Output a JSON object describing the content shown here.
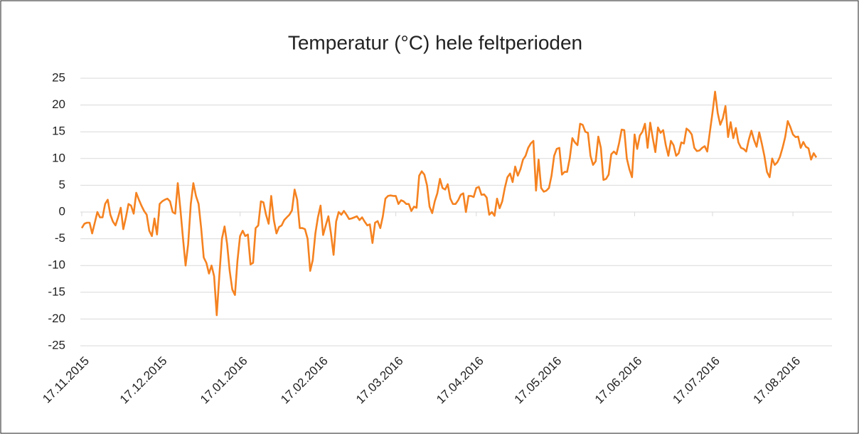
{
  "chart_data": {
    "type": "line",
    "title": "Temperatur (°C) hele feltperioden",
    "categories": [
      "17.11.2015",
      null,
      null,
      null,
      null,
      null,
      null,
      null,
      null,
      null,
      null,
      null,
      null,
      null,
      null,
      null,
      null,
      null,
      null,
      null,
      null,
      null,
      null,
      null,
      null,
      null,
      null,
      null,
      null,
      null,
      "17.12.2015",
      null,
      null,
      null,
      null,
      null,
      null,
      null,
      null,
      null,
      null,
      null,
      null,
      null,
      null,
      null,
      null,
      null,
      null,
      null,
      null,
      null,
      null,
      null,
      null,
      null,
      null,
      null,
      null,
      null,
      null,
      "17.01.2016",
      null,
      null,
      null,
      null,
      null,
      null,
      null,
      null,
      null,
      null,
      null,
      null,
      null,
      null,
      null,
      null,
      null,
      null,
      null,
      null,
      null,
      null,
      null,
      null,
      null,
      null,
      null,
      null,
      null,
      null,
      "17.02.2016",
      null,
      null,
      null,
      null,
      null,
      null,
      null,
      null,
      null,
      null,
      null,
      null,
      null,
      null,
      null,
      null,
      null,
      null,
      null,
      null,
      null,
      null,
      null,
      null,
      null,
      null,
      null,
      null,
      "17.03.2016",
      null,
      null,
      null,
      null,
      null,
      null,
      null,
      null,
      null,
      null,
      null,
      null,
      null,
      null,
      null,
      null,
      null,
      null,
      null,
      null,
      null,
      null,
      null,
      null,
      null,
      null,
      null,
      null,
      null,
      null,
      "17.04.2016",
      null,
      null,
      null,
      null,
      null,
      null,
      null,
      null,
      null,
      null,
      null,
      null,
      null,
      null,
      null,
      null,
      null,
      null,
      null,
      null,
      null,
      null,
      null,
      null,
      null,
      null,
      null,
      null,
      null,
      "17.05.2016",
      null,
      null,
      null,
      null,
      null,
      null,
      null,
      null,
      null,
      null,
      null,
      null,
      null,
      null,
      null,
      null,
      null,
      null,
      null,
      null,
      null,
      null,
      null,
      null,
      null,
      null,
      null,
      null,
      null,
      null,
      "17.06.2016",
      null,
      null,
      null,
      null,
      null,
      null,
      null,
      null,
      null,
      null,
      null,
      null,
      null,
      null,
      null,
      null,
      null,
      null,
      null,
      null,
      null,
      null,
      null,
      null,
      null,
      null,
      null,
      null,
      null,
      "17.07.2016",
      null,
      null,
      null,
      null,
      null,
      null,
      null,
      null,
      null,
      null,
      null,
      null,
      null,
      null,
      null,
      null,
      null,
      null,
      null,
      null,
      null,
      null,
      null,
      null,
      null,
      null,
      null,
      null,
      null,
      null,
      "17.08.2016",
      null,
      null,
      null,
      null,
      null,
      null,
      null,
      null,
      null
    ],
    "series": [
      {
        "name": "Temperatur",
        "color": "#f58220",
        "values": [
          -3,
          -2.2,
          -2,
          -2,
          -4,
          -2,
          0,
          -1,
          -1,
          1.5,
          2.3,
          -0.5,
          -1.8,
          -2.5,
          -1,
          0.8,
          -3.2,
          -1,
          1.5,
          1.2,
          -0.3,
          3.6,
          2.3,
          1.2,
          0.2,
          -0.5,
          -3.5,
          -4.5,
          -1.2,
          -4.2,
          1.5,
          2,
          2.3,
          2.5,
          2,
          0,
          -0.3,
          5.4,
          0.5,
          -5,
          -10,
          -6,
          1.5,
          5.4,
          3,
          1.5,
          -3,
          -8.5,
          -9.5,
          -11.5,
          -10,
          -12,
          -19.3,
          -12,
          -5,
          -2.7,
          -6,
          -11,
          -14.5,
          -15.5,
          -9,
          -4.5,
          -3.5,
          -4.5,
          -4.2,
          -9.8,
          -9.5,
          -3,
          -2.5,
          2,
          1.8,
          -0.5,
          -2.2,
          3,
          -1.5,
          -4,
          -2.8,
          -2.5,
          -1.5,
          -1,
          -0.5,
          0.3,
          4.2,
          2.3,
          -3,
          -3,
          -3.2,
          -5,
          -11,
          -9,
          -4,
          -1,
          1.2,
          -4.3,
          -2.5,
          -0.8,
          -4,
          -8,
          -1.8,
          0,
          -0.5,
          0.2,
          -0.5,
          -1.3,
          -1.2,
          -1,
          -0.8,
          -1.5,
          -1,
          -1.8,
          -2.5,
          -2.3,
          -5.8,
          -2,
          -1.7,
          -3,
          -0.8,
          2.5,
          3,
          3.1,
          3,
          3,
          1.5,
          2.2,
          2,
          1.5,
          1.5,
          0.2,
          1,
          0.8,
          6.8,
          7.6,
          7,
          5,
          1,
          -0.2,
          2,
          3.5,
          6.2,
          4.5,
          4.2,
          5.2,
          2.5,
          1.5,
          1.5,
          2.2,
          3.2,
          3.5,
          0,
          3,
          3,
          2.8,
          4.5,
          4.7,
          3.2,
          3.3,
          2.7,
          -0.5,
          0,
          -0.7,
          2.5,
          0.7,
          2,
          4.5,
          6.5,
          7.2,
          5.6,
          8.5,
          6.8,
          8,
          9.8,
          10.5,
          12,
          12.8,
          13.3,
          4,
          9.8,
          4.5,
          3.8,
          4,
          4.5,
          6.8,
          10.5,
          11.8,
          12,
          7,
          7.5,
          7.5,
          10,
          13.8,
          13,
          12.5,
          16.5,
          16.3,
          15,
          14.8,
          10.5,
          8.8,
          9.5,
          14.1,
          12,
          6,
          6.2,
          7,
          10.8,
          11.3,
          10.8,
          12.8,
          15.4,
          15.3,
          10,
          8,
          6.5,
          14.5,
          11.8,
          14.3,
          15,
          16.5,
          12,
          16.7,
          13.8,
          11.2,
          15.8,
          14.8,
          15.3,
          12.5,
          10.5,
          13.3,
          12.5,
          10.5,
          11,
          13,
          12.8,
          15.6,
          15.2,
          14.5,
          12,
          11.4,
          11.5,
          12,
          12.3,
          11.3,
          15,
          18.5,
          22.5,
          18.5,
          16.3,
          17.5,
          19.8,
          14,
          16.8,
          13.8,
          15.7,
          13,
          12,
          11.8,
          11.3,
          13.5,
          15.2,
          13.5,
          12.2,
          14.9,
          12.8,
          10.5,
          7.5,
          6.5,
          10,
          8.8,
          9.3,
          10.3,
          12,
          14,
          17,
          15.9,
          14.5,
          14,
          14.1,
          12,
          13.1,
          12.2,
          11.9,
          9.8,
          11,
          10.2
        ]
      }
    ],
    "ylim": [
      -25,
      25
    ],
    "yticks": [
      -25,
      -20,
      -15,
      -10,
      -5,
      0,
      5,
      10,
      15,
      20,
      25
    ],
    "grid": true
  }
}
